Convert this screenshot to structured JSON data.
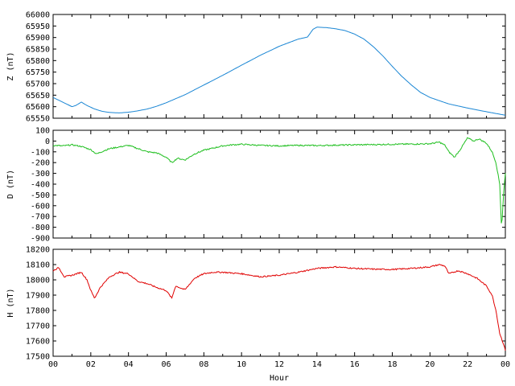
{
  "chart_data": [
    {
      "type": "line",
      "ylabel": "Z (nT)",
      "xlabel": "",
      "color": "#1a86d4",
      "ylim": [
        65550,
        66000
      ],
      "yticks": [
        65550,
        65600,
        65650,
        65700,
        65750,
        65800,
        65850,
        65900,
        65950,
        66000
      ],
      "xlim": [
        0,
        24
      ],
      "series": [
        {
          "x": [
            0,
            0.5,
            1,
            1.2,
            1.5,
            1.8,
            2.2,
            2.6,
            3,
            3.5,
            4,
            4.5,
            5,
            5.5,
            6,
            7,
            8,
            9,
            10,
            11,
            12,
            13,
            13.5,
            13.8,
            14,
            14.5,
            15,
            15.5,
            16,
            16.5,
            17,
            17.5,
            18,
            18.5,
            19,
            19.5,
            20,
            21,
            22,
            23,
            24
          ],
          "values": [
            65640,
            65620,
            65600,
            65605,
            65620,
            65605,
            65590,
            65580,
            65575,
            65573,
            65576,
            65582,
            65590,
            65602,
            65617,
            65652,
            65694,
            65736,
            65780,
            65823,
            65862,
            65893,
            65902,
            65936,
            65945,
            65943,
            65938,
            65930,
            65915,
            65893,
            65860,
            65820,
            65775,
            65732,
            65695,
            65662,
            65640,
            65612,
            65594,
            65578,
            65563
          ]
        }
      ]
    },
    {
      "type": "line",
      "ylabel": "D (nT)",
      "xlabel": "",
      "color": "#1fbf1f",
      "ylim": [
        -900,
        100
      ],
      "yticks": [
        -900,
        -800,
        -700,
        -600,
        -500,
        -400,
        -300,
        -200,
        -100,
        0,
        100
      ],
      "xlim": [
        0,
        24
      ],
      "series": [
        {
          "x": [
            0,
            0.5,
            1,
            1.5,
            2,
            2.3,
            2.7,
            3,
            3.5,
            4,
            4.5,
            5,
            5.5,
            6,
            6.3,
            6.6,
            7,
            7.5,
            8,
            8.5,
            9,
            9.5,
            10,
            11,
            12,
            13,
            14,
            15,
            16,
            17,
            18,
            19,
            20,
            20.5,
            20.8,
            21,
            21.3,
            21.6,
            22,
            22.3,
            22.6,
            23,
            23.3,
            23.5,
            23.7,
            23.8,
            23.9,
            24
          ],
          "values": [
            -40,
            -45,
            -35,
            -50,
            -80,
            -120,
            -90,
            -70,
            -55,
            -40,
            -70,
            -100,
            -110,
            -150,
            -200,
            -160,
            -175,
            -120,
            -85,
            -65,
            -45,
            -35,
            -30,
            -40,
            -45,
            -40,
            -42,
            -38,
            -35,
            -33,
            -30,
            -28,
            -25,
            -10,
            -40,
            -100,
            -150,
            -80,
            30,
            0,
            20,
            -20,
            -100,
            -200,
            -400,
            -820,
            -500,
            -300
          ]
        }
      ]
    },
    {
      "type": "line",
      "ylabel": "H (nT)",
      "xlabel": "Hour",
      "color": "#e00000",
      "ylim": [
        17500,
        18200
      ],
      "yticks": [
        17500,
        17600,
        17700,
        17800,
        17900,
        18000,
        18100,
        18200
      ],
      "xlim": [
        0,
        24
      ],
      "xtick_labels": [
        "00",
        "02",
        "04",
        "06",
        "08",
        "10",
        "12",
        "14",
        "16",
        "18",
        "20",
        "22",
        "00"
      ],
      "series": [
        {
          "x": [
            0,
            0.3,
            0.6,
            1,
            1.5,
            1.8,
            2,
            2.2,
            2.5,
            3,
            3.5,
            4,
            4.5,
            5,
            5.5,
            6,
            6.3,
            6.5,
            7,
            7.5,
            8,
            8.5,
            9,
            9.5,
            10,
            10.5,
            11,
            12,
            13,
            14,
            15,
            16,
            17,
            18,
            19,
            20,
            20.5,
            20.8,
            21,
            21.5,
            22,
            22.5,
            23,
            23.3,
            23.5,
            23.7,
            23.9,
            24
          ],
          "values": [
            18060,
            18080,
            18020,
            18030,
            18050,
            18000,
            17930,
            17880,
            17950,
            18020,
            18050,
            18040,
            17990,
            17975,
            17950,
            17930,
            17880,
            17960,
            17935,
            18010,
            18040,
            18050,
            18050,
            18045,
            18040,
            18030,
            18020,
            18030,
            18050,
            18075,
            18085,
            18075,
            18070,
            18068,
            18075,
            18085,
            18100,
            18090,
            18040,
            18060,
            18040,
            18010,
            17960,
            17900,
            17800,
            17650,
            17580,
            17540
          ]
        }
      ]
    }
  ]
}
